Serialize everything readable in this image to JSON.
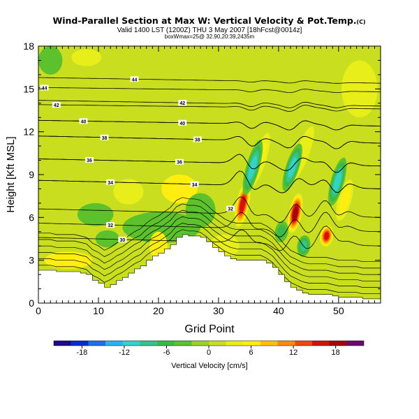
{
  "chart_data": {
    "type": "heatmap",
    "title": "Wind-Parallel Section at Max W: Vertical Velocity & Pot.Temp.",
    "title_mark": "(C)",
    "subtitle": "Valid 1400 LST (1200Z) THU 3 May 2007 [18hFcst@0014z]",
    "subtitle2": "boxWmax=25@ 32.90,20:39,2435m",
    "xlabel": "Grid Point",
    "ylabel": "Height [Kft MSL]",
    "xlim": [
      0,
      57
    ],
    "ylim": [
      0,
      18
    ],
    "x_ticks": [
      "0",
      "10",
      "20",
      "30",
      "40",
      "50"
    ],
    "x_tick_values": [
      0,
      10,
      20,
      30,
      40,
      50
    ],
    "y_ticks": [
      "0",
      "3",
      "6",
      "9",
      "12",
      "15",
      "18"
    ],
    "y_tick_values": [
      0,
      3,
      6,
      9,
      12,
      15,
      18
    ],
    "colorbar": {
      "label": "Vertical Velocity [cm/s]",
      "min": -22,
      "max": 22,
      "tick_values": [
        -18,
        -12,
        -6,
        0,
        6,
        12,
        18
      ],
      "tick_labels": [
        "-18",
        "-12",
        "-6",
        "0",
        "6",
        "12",
        "18"
      ],
      "colors": [
        "#1a0b86",
        "#0a2ad8",
        "#1d6ef0",
        "#27b4f0",
        "#33d3c8",
        "#36c48a",
        "#3bb84a",
        "#5cc12c",
        "#9bd126",
        "#c8de1f",
        "#e8ee1a",
        "#ffee0f",
        "#ffc20b",
        "#ff8a0a",
        "#f54508",
        "#d61208",
        "#a8000e",
        "#6a0a6a"
      ]
    },
    "terrain_kft": [
      2.3,
      2.3,
      2.3,
      2.2,
      2.2,
      2.2,
      2.2,
      2.1,
      2.0,
      1.6,
      1.4,
      1.1,
      1.3,
      1.6,
      1.8,
      2.1,
      2.4,
      2.6,
      3.0,
      3.3,
      3.5,
      3.8,
      4.1,
      4.6,
      4.8,
      4.7,
      4.7,
      4.6,
      4.3,
      3.9,
      3.6,
      3.3,
      3.1,
      3.0,
      3.0,
      3.0,
      3.0,
      3.0,
      2.8,
      2.5,
      2.0,
      1.5,
      1.1,
      0.9,
      0.7,
      0.6,
      0.6,
      0.6,
      0.6,
      0.5,
      0.4,
      0.4,
      0.4,
      0.4,
      0.3,
      0.3,
      0.3,
      0.3
    ],
    "theta_contours": [
      {
        "label": "30",
        "label_x": 14.0,
        "y_left": 4.6,
        "y_right": 4.0
      },
      {
        "label": "32",
        "label_x": 12.0,
        "y_left": 5.6,
        "y_right": 5.0
      },
      {
        "label": "32",
        "label_x": 32.0,
        "y_left": 6.6,
        "y_right": 6.0
      },
      {
        "label": "34",
        "label_x": 12.0,
        "y_left": 8.6,
        "y_right": 8.0
      },
      {
        "label": "34",
        "label_x": 26.0,
        "y_left": 8.6,
        "y_right": 8.0
      },
      {
        "label": "36",
        "label_x": 8.5,
        "y_left": 10.1,
        "y_right": 9.6
      },
      {
        "label": "36",
        "label_x": 23.5,
        "y_left": 10.1,
        "y_right": 9.6
      },
      {
        "label": "38",
        "label_x": 11.0,
        "y_left": 11.7,
        "y_right": 11.2
      },
      {
        "label": "38",
        "label_x": 26.5,
        "y_left": 11.7,
        "y_right": 11.2
      },
      {
        "label": "40",
        "label_x": 7.5,
        "y_left": 12.8,
        "y_right": 12.4
      },
      {
        "label": "40",
        "label_x": 24.0,
        "y_left": 12.8,
        "y_right": 12.4
      },
      {
        "label": "42",
        "label_x": 3.0,
        "y_left": 13.9,
        "y_right": 13.6
      },
      {
        "label": "42",
        "label_x": 24.0,
        "y_left": 14.2,
        "y_right": 13.8
      },
      {
        "label": "44",
        "label_x": 16.0,
        "y_left": 15.8,
        "y_right": 15.4
      },
      {
        "label": "44",
        "label_x": 1.0,
        "y_left": 15.1,
        "y_right": 14.8
      }
    ],
    "bottom_contours_count": 6,
    "updraft_cells": [
      {
        "x": 34.0,
        "y": 6.9,
        "w": 18,
        "h_len": 3.2,
        "tilt": 0.25
      },
      {
        "x": 42.8,
        "y": 6.3,
        "w": 20,
        "h_len": 2.8,
        "tilt": 0.25
      },
      {
        "x": 48.0,
        "y": 4.7,
        "w": 18,
        "h_len": 1.5,
        "tilt": 0.2
      },
      {
        "x": 36.8,
        "y": 10.0,
        "w": 7,
        "h_len": 4.0,
        "tilt": 0.4
      },
      {
        "x": 44.0,
        "y": 10.5,
        "w": 6,
        "h_len": 4.0,
        "tilt": 0.45
      },
      {
        "x": 51.0,
        "y": 7.2,
        "w": 9,
        "h_len": 3.0,
        "tilt": 0.35
      }
    ],
    "downdraft_cells": [
      {
        "x": 35.7,
        "y": 9.5,
        "w": -14,
        "h_len": 4.0,
        "tilt": 0.35
      },
      {
        "x": 42.3,
        "y": 9.5,
        "w": -13,
        "h_len": 3.5,
        "tilt": 0.4
      },
      {
        "x": 49.8,
        "y": 8.5,
        "w": -13,
        "h_len": 3.5,
        "tilt": 0.35
      },
      {
        "x": 44.2,
        "y": 4.0,
        "w": -10,
        "h_len": 1.5,
        "tilt": 0.2
      },
      {
        "x": 40.5,
        "y": 5.0,
        "w": -8,
        "h_len": 1.5,
        "tilt": 0.2
      }
    ],
    "weak_cells": [
      {
        "x": 20.5,
        "y": 5.3,
        "w": -3.5,
        "rx": 6.5,
        "ry": 1.1
      },
      {
        "x": 15.0,
        "y": 7.8,
        "w": 4.5,
        "rx": 2.5,
        "ry": 0.9
      },
      {
        "x": 23.5,
        "y": 8.0,
        "w": 5.0,
        "rx": 3.0,
        "ry": 1.0
      },
      {
        "x": 20.0,
        "y": 4.0,
        "w": 5.5,
        "rx": 1.5,
        "ry": 1.0
      },
      {
        "x": 5.0,
        "y": 3.0,
        "w": 5.0,
        "rx": 4.0,
        "ry": 0.6
      },
      {
        "x": 9.5,
        "y": 6.2,
        "w": -3.0,
        "rx": 3.0,
        "ry": 0.8
      },
      {
        "x": 2.0,
        "y": 17.0,
        "w": -3.0,
        "rx": 2.0,
        "ry": 1.0
      },
      {
        "x": 8.0,
        "y": 17.2,
        "w": 3.5,
        "rx": 2.5,
        "ry": 0.6
      },
      {
        "x": 27.0,
        "y": 6.5,
        "w": -3.0,
        "rx": 2.5,
        "ry": 1.2
      },
      {
        "x": 53.5,
        "y": 15.0,
        "w": 3.0,
        "rx": 3.0,
        "ry": 2.0
      },
      {
        "x": 31.0,
        "y": 4.0,
        "w": 4.5,
        "rx": 2.5,
        "ry": 0.8
      },
      {
        "x": 11.5,
        "y": 4.5,
        "w": -3.5,
        "rx": 2.0,
        "ry": 0.6
      }
    ],
    "background_w": 1.5
  }
}
